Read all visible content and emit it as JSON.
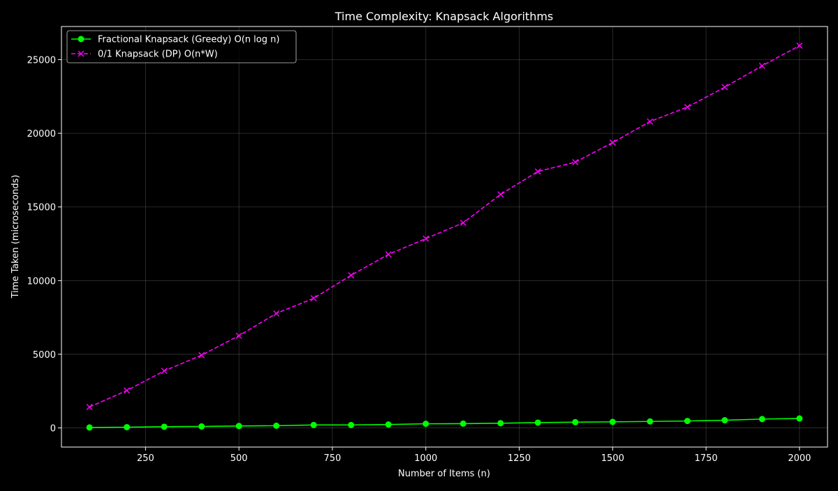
{
  "chart_data": {
    "type": "line",
    "title": "Time Complexity: Knapsack Algorithms",
    "xlabel": "Number of Items (n)",
    "ylabel": "Time Taken (microseconds)",
    "x": [
      100,
      200,
      300,
      400,
      500,
      600,
      700,
      800,
      900,
      1000,
      1100,
      1200,
      1300,
      1400,
      1500,
      1600,
      1700,
      1800,
      1900,
      2000
    ],
    "xlim": [
      25,
      2075
    ],
    "ylim": [
      -1300,
      27250
    ],
    "xticks": [
      250,
      500,
      750,
      1000,
      1250,
      1500,
      1750,
      2000
    ],
    "yticks": [
      0,
      5000,
      10000,
      15000,
      20000,
      25000
    ],
    "grid": true,
    "legend_position": "top-left",
    "series": [
      {
        "name": "Fractional Knapsack (Greedy) O(n log n)",
        "color": "#00ff00",
        "marker": "circle",
        "linestyle": "solid",
        "values": [
          30,
          50,
          80,
          100,
          130,
          150,
          200,
          200,
          230,
          280,
          290,
          320,
          360,
          390,
          410,
          440,
          470,
          520,
          600,
          640
        ]
      },
      {
        "name": "0/1 Knapsack (DP) O(n*W)",
        "color": "#ff00ff",
        "marker": "x",
        "linestyle": "dashed",
        "values": [
          1420,
          2540,
          3870,
          4940,
          6260,
          7770,
          8800,
          10360,
          11780,
          12850,
          13920,
          15850,
          17410,
          18040,
          19370,
          20800,
          21780,
          23130,
          24580,
          25950
        ]
      }
    ]
  }
}
